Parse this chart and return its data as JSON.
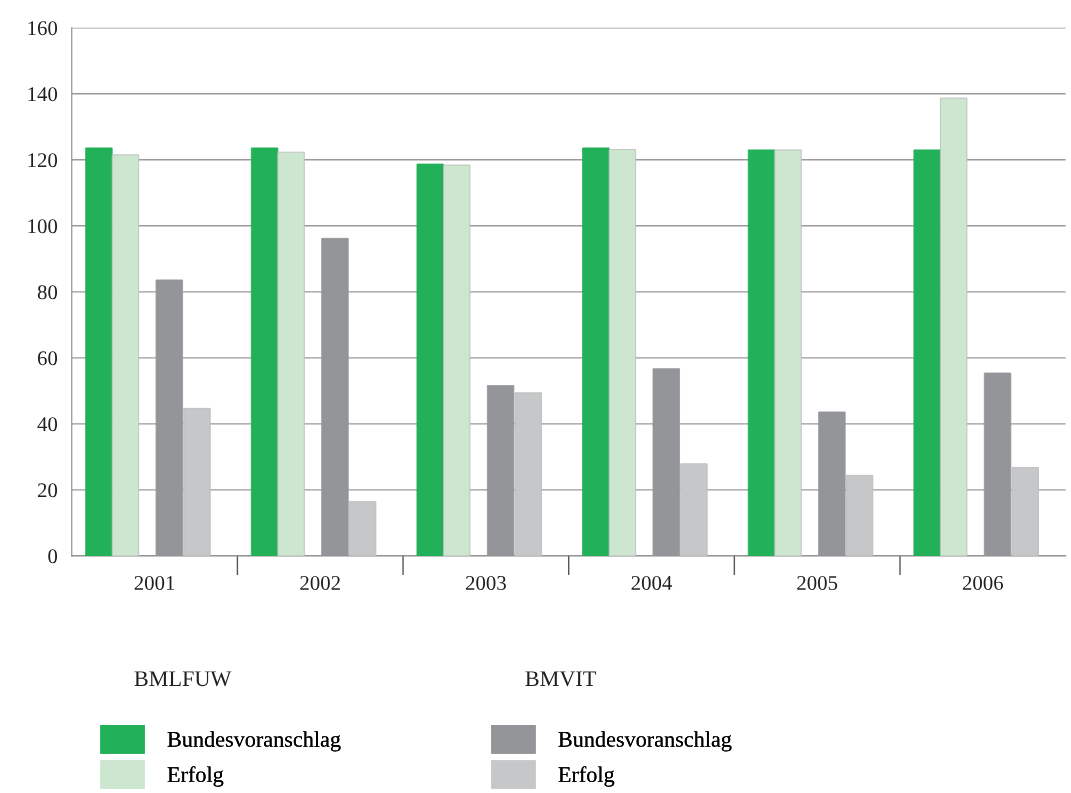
{
  "chart_data": {
    "type": "bar",
    "categories": [
      "2001",
      "2002",
      "2003",
      "2004",
      "2005",
      "2006"
    ],
    "series": [
      {
        "name": "Bundesvoranschlag",
        "color": "#22b058",
        "values": [
          123.6,
          123.6,
          118.7,
          123.6,
          123.0,
          123.0
        ]
      },
      {
        "name": "Erfolg",
        "color": "#cce6cf",
        "values": [
          121.5,
          122.3,
          118.4,
          123.1,
          123.0,
          138.7
        ]
      },
      {
        "name": "Bundesvoranschlag",
        "color": "#939598",
        "values": [
          83.6,
          96.2,
          51.6,
          56.7,
          43.6,
          55.4
        ]
      },
      {
        "name": "Erfolg",
        "color": "#c6c7c9",
        "values": [
          44.7,
          16.5,
          49.4,
          27.9,
          24.4,
          26.8
        ]
      }
    ],
    "ylim": [
      0,
      160
    ],
    "yticks": [
      0,
      20,
      40,
      60,
      80,
      100,
      120,
      140,
      160
    ],
    "grid": "y",
    "legend": "bottom",
    "annotations": [
      "BMLFUW",
      "BMVIT"
    ]
  }
}
